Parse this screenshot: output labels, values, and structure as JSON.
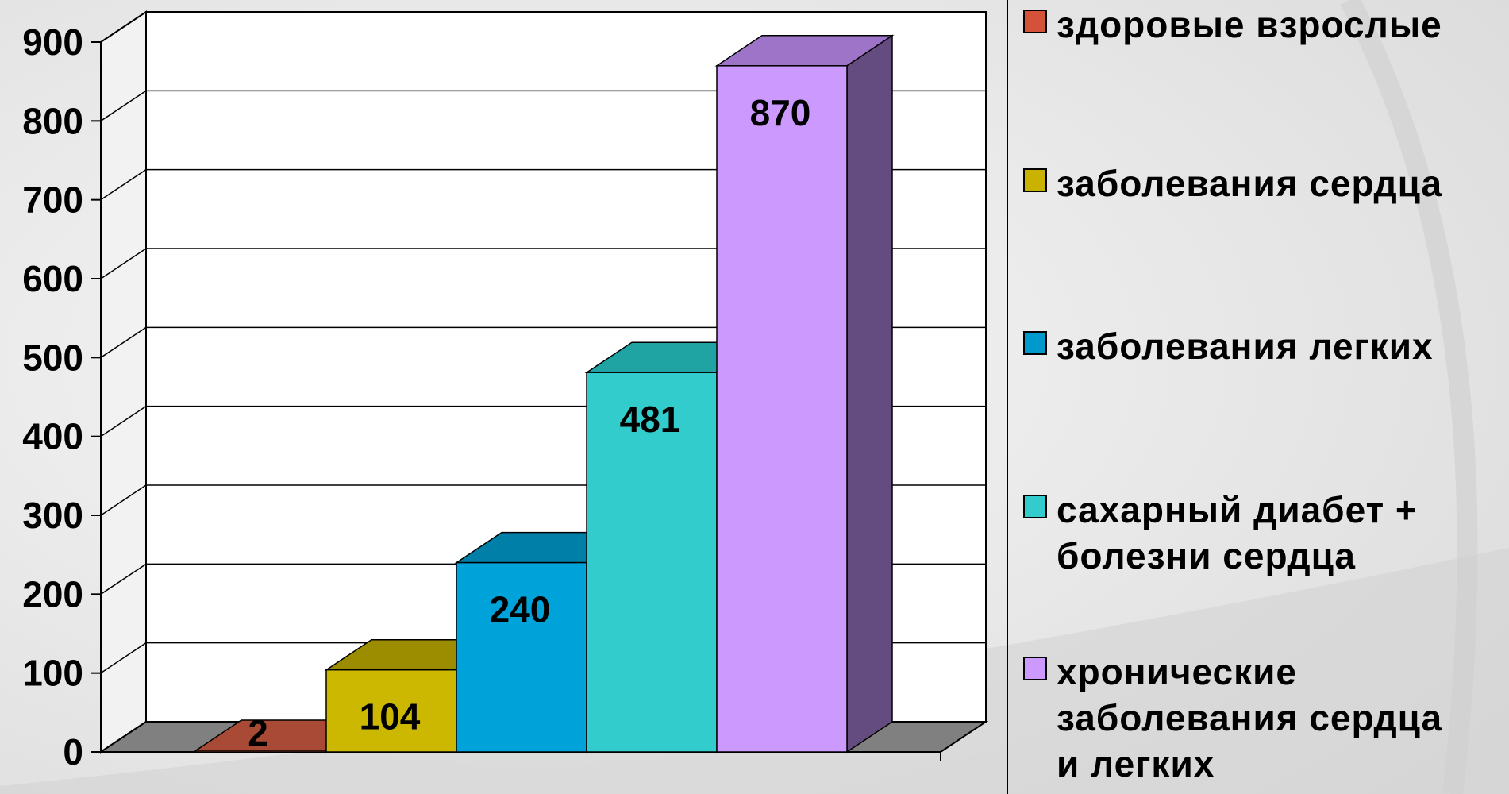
{
  "chart_data": {
    "type": "bar",
    "categories": [
      "здоровые взрослые",
      "заболевания сердца",
      "заболевания легких",
      "сахарный диабет + болезни сердца",
      "хронические заболевания сердца и легких"
    ],
    "values": [
      2,
      104,
      240,
      481,
      870
    ],
    "data_labels": [
      "2",
      "104",
      "240",
      "481",
      "870"
    ],
    "ylim": [
      0,
      900
    ],
    "yticks": [
      "0",
      "100",
      "200",
      "300",
      "400",
      "500",
      "600",
      "700",
      "800",
      "900"
    ],
    "grid": true,
    "style": "3d-column",
    "legend_position": "right",
    "colors": {
      "front": [
        "#b5503a",
        "#ccb800",
        "#00a3d9",
        "#33cccc",
        "#cc99ff"
      ],
      "top": [
        "#a84a36",
        "#9c8c00",
        "#0080a8",
        "#1fa3a3",
        "#9e74c9"
      ],
      "side": [
        "#7d3526",
        "#8c7e00",
        "#006a8c",
        "#1a8a8a",
        "#644b80"
      ]
    }
  },
  "legend": {
    "items": [
      {
        "label": "здоровые взрослые",
        "color": "#d4513a"
      },
      {
        "label": "заболевания сердца",
        "color": "#c9b200"
      },
      {
        "label": "заболевания легких",
        "color": "#0099cc"
      },
      {
        "label": "сахарный диабет +\nболезни сердца",
        "color": "#33cccc"
      },
      {
        "label": "хронические\nзаболевания сердца\nи легких",
        "color": "#cc99ff"
      }
    ]
  }
}
